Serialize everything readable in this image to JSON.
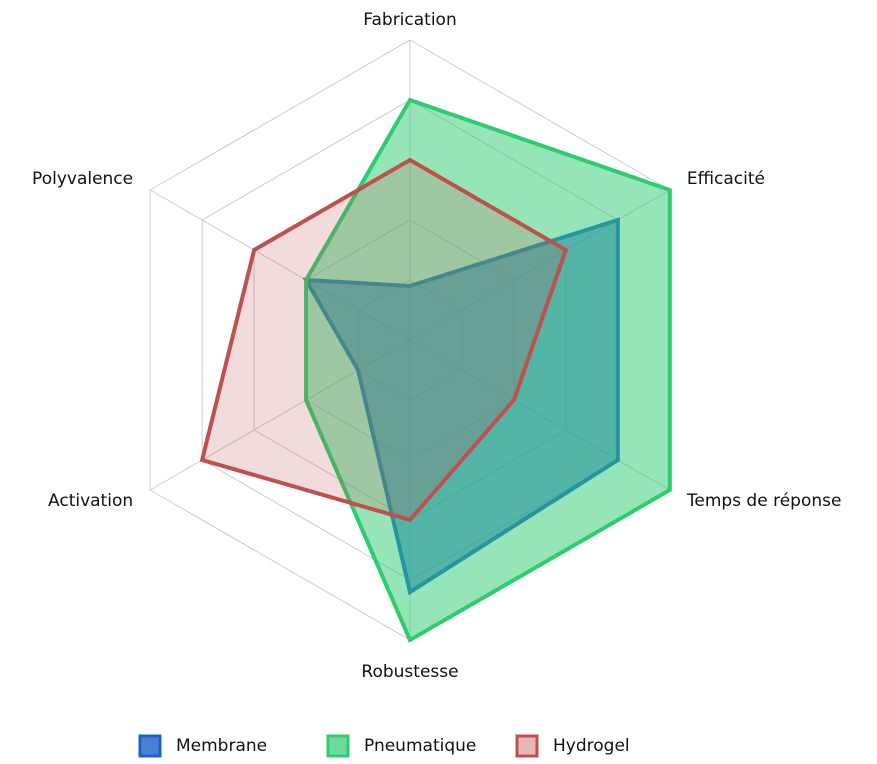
{
  "chart_data": {
    "type": "radar",
    "categories": [
      "Fabrication",
      "Efficacité",
      "Temps de réponse",
      "Robustesse",
      "Activation",
      "Polyvalence"
    ],
    "series": [
      {
        "name": "Membrane",
        "color": "#1f5fc8",
        "values": [
          0.9,
          4,
          4,
          4.2,
          1,
          2
        ]
      },
      {
        "name": "Pneumatique",
        "color": "#2ecc71",
        "values": [
          4,
          5,
          5,
          5,
          2,
          2
        ]
      },
      {
        "name": "Hydrogel",
        "color": "#c0504d",
        "values": [
          3,
          3,
          2,
          3,
          4,
          3
        ]
      }
    ],
    "ylim": [
      0,
      5
    ],
    "yticks": [
      1,
      2,
      3,
      4,
      5
    ],
    "grid": true,
    "legend": "bottom"
  }
}
